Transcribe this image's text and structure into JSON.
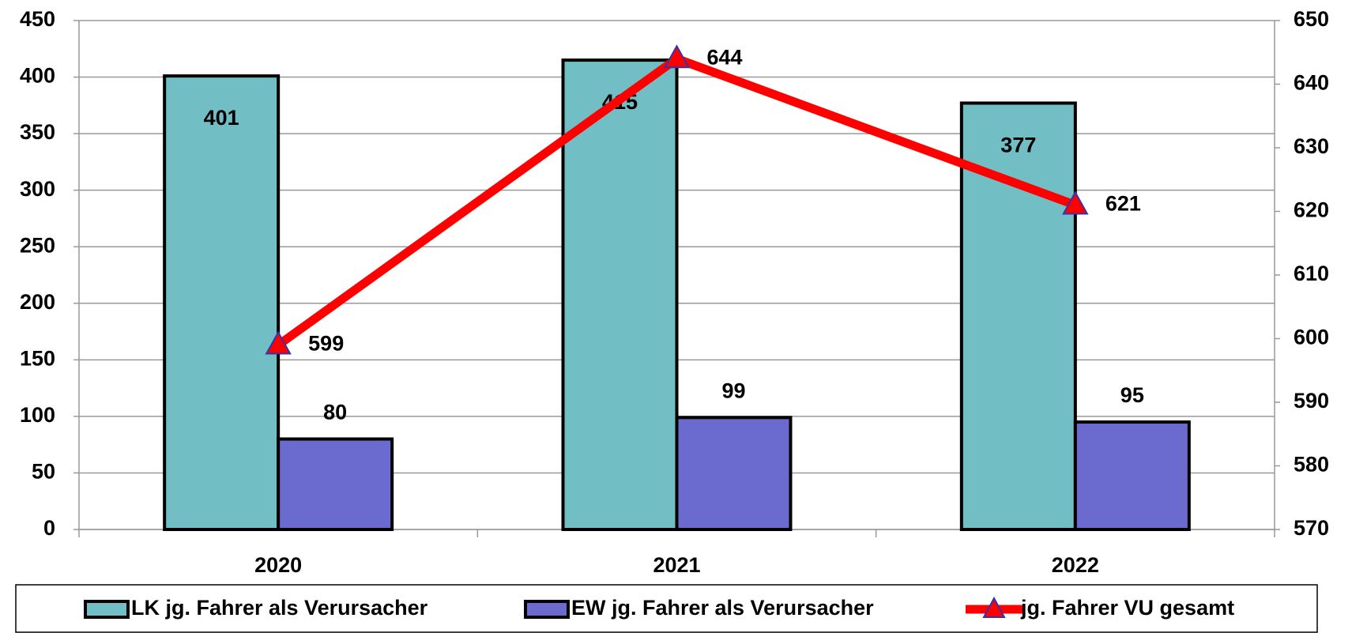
{
  "chart_data": {
    "type": "bar-line",
    "categories": [
      "2020",
      "2021",
      "2022"
    ],
    "series": [
      {
        "name": "LK jg. Fahrer als Verursacher",
        "color": "#71bec4",
        "type": "bar",
        "values": [
          401,
          415,
          377
        ]
      },
      {
        "name": "EW jg. Fahrer als Verursacher",
        "color": "#6b6bcf",
        "type": "bar",
        "values": [
          80,
          99,
          95
        ]
      },
      {
        "name": "jg. Fahrer VU gesamt",
        "color": "#ff0000",
        "marker_color": "#3333aa",
        "type": "line",
        "axis": "y2",
        "values": [
          599,
          644,
          621
        ]
      }
    ],
    "ylim": [
      0,
      450
    ],
    "yticks": [
      0,
      50,
      100,
      150,
      200,
      250,
      300,
      350,
      400,
      450
    ],
    "y2lim": [
      570,
      650
    ],
    "y2ticks": [
      570,
      580,
      590,
      600,
      610,
      620,
      630,
      640,
      650
    ],
    "grid": true,
    "legend": "bottom"
  }
}
